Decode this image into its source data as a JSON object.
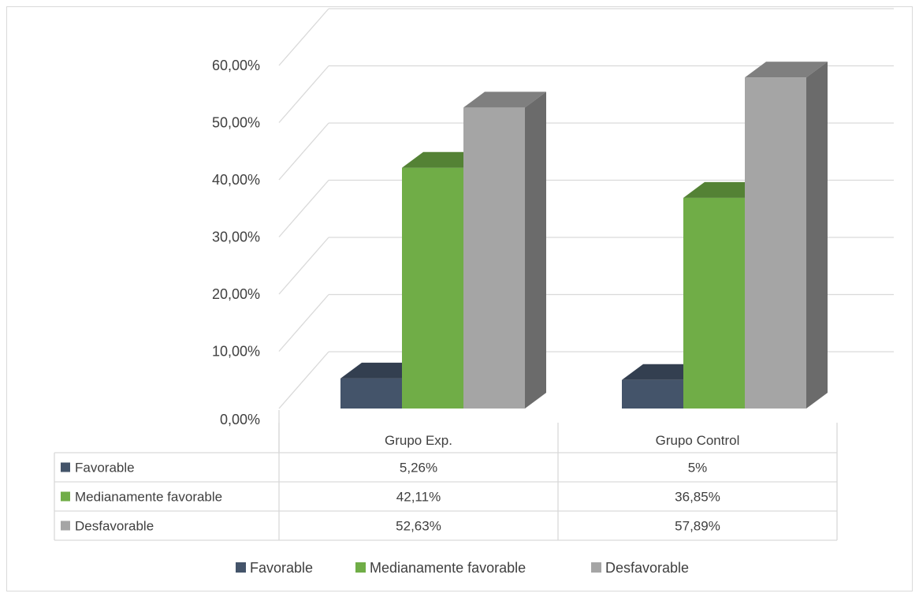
{
  "chart_data": {
    "type": "bar",
    "style": "3d-clustered-column-with-data-table",
    "categories": [
      "Grupo Exp.",
      "Grupo Control"
    ],
    "series": [
      {
        "name": "Favorable",
        "values": [
          5.26,
          5
        ],
        "labels": [
          "5,26%",
          "5%"
        ],
        "color": "#44546a",
        "top_color": "#333f50",
        "side_color": "#2f3a4a"
      },
      {
        "name": "Medianamente favorable",
        "values": [
          42.11,
          36.85
        ],
        "labels": [
          "42,11%",
          "36,85%"
        ],
        "color": "#70ad47",
        "top_color": "#548235",
        "side_color": "#548235"
      },
      {
        "name": "Desfavorable",
        "values": [
          52.63,
          57.89
        ],
        "labels": [
          "52,63%",
          "57,89%"
        ],
        "color": "#a5a5a5",
        "top_color": "#7f7f7f",
        "side_color": "#6b6b6b"
      }
    ],
    "y_ticks": [
      "0,00%",
      "10,00%",
      "20,00%",
      "30,00%",
      "40,00%",
      "50,00%",
      "60,00%"
    ],
    "ylim": [
      0,
      60
    ],
    "grid": true,
    "legend_position": "bottom"
  }
}
